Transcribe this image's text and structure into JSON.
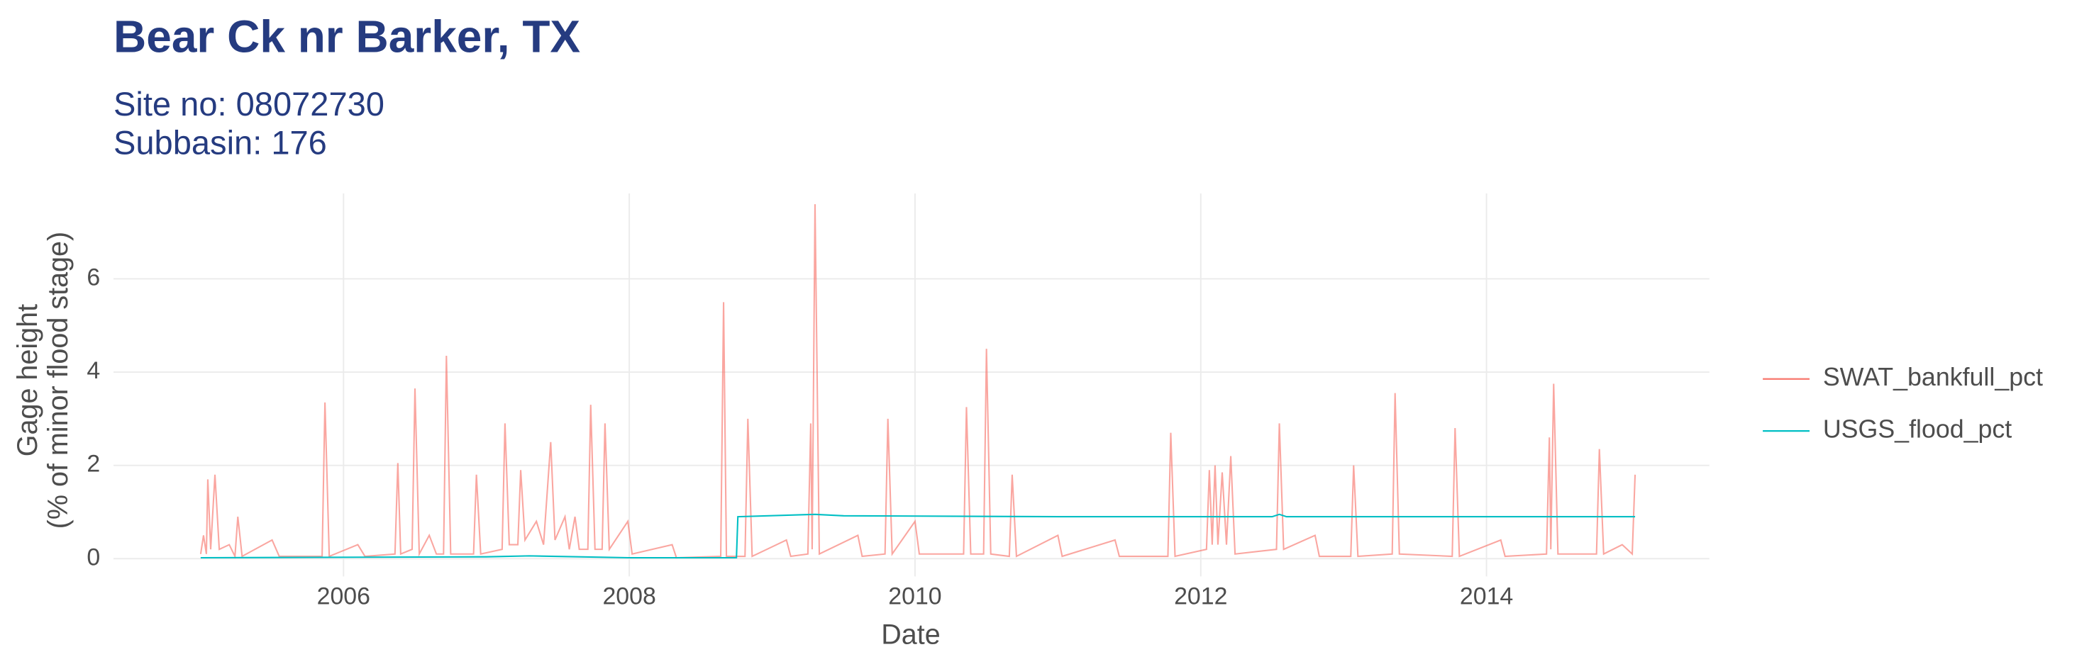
{
  "chart_data": {
    "type": "line",
    "title": "Bear Ck nr Barker, TX",
    "subtitle": [
      "Site no: 08072730",
      "Subbasin: 176"
    ],
    "x_label": "Date",
    "y_label": [
      "Gage height",
      "(% of minor flood stage)"
    ],
    "xlim": [
      2004.39,
      2015.56
    ],
    "xticks": [
      2006,
      2008,
      2010,
      2012,
      2014
    ],
    "ylim": [
      -0.38,
      7.83
    ],
    "yticks": [
      0,
      2,
      4,
      6
    ],
    "grid": true,
    "legend": "right",
    "series": [
      {
        "name": "SWAT_bankfull_pct",
        "color": "#f8766d",
        "x": [
          2005.0,
          2005.02,
          2005.04,
          2005.05,
          2005.07,
          2005.1,
          2005.13,
          2005.2,
          2005.24,
          2005.26,
          2005.29,
          2005.5,
          2005.55,
          2005.85,
          2005.87,
          2005.9,
          2006.1,
          2006.15,
          2006.36,
          2006.38,
          2006.4,
          2006.48,
          2006.5,
          2006.53,
          2006.6,
          2006.65,
          2006.7,
          2006.72,
          2006.75,
          2006.91,
          2006.93,
          2006.96,
          2007.11,
          2007.13,
          2007.16,
          2007.22,
          2007.24,
          2007.27,
          2007.35,
          2007.4,
          2007.45,
          2007.48,
          2007.55,
          2007.58,
          2007.62,
          2007.65,
          2007.71,
          2007.73,
          2007.76,
          2007.81,
          2007.83,
          2007.86,
          2007.99,
          2008.02,
          2008.3,
          2008.33,
          2008.64,
          2008.66,
          2008.68,
          2008.81,
          2008.83,
          2008.86,
          2009.1,
          2009.13,
          2009.25,
          2009.27,
          2009.28,
          2009.3,
          2009.33,
          2009.6,
          2009.63,
          2009.79,
          2009.81,
          2009.84,
          2010.0,
          2010.03,
          2010.34,
          2010.36,
          2010.39,
          2010.48,
          2010.5,
          2010.53,
          2010.66,
          2010.68,
          2010.71,
          2011.0,
          2011.03,
          2011.4,
          2011.43,
          2011.77,
          2011.79,
          2011.82,
          2012.04,
          2012.06,
          2012.08,
          2012.1,
          2012.12,
          2012.15,
          2012.18,
          2012.21,
          2012.24,
          2012.53,
          2012.55,
          2012.58,
          2012.8,
          2012.83,
          2013.05,
          2013.07,
          2013.1,
          2013.34,
          2013.36,
          2013.39,
          2013.76,
          2013.78,
          2013.81,
          2014.1,
          2014.13,
          2014.42,
          2014.44,
          2014.45,
          2014.47,
          2014.5,
          2014.77,
          2014.79,
          2014.82,
          2014.95,
          2015.02,
          2015.04
        ],
        "values": [
          0.1,
          0.5,
          0.1,
          1.7,
          0.2,
          1.8,
          0.2,
          0.3,
          0.05,
          0.9,
          0.05,
          0.4,
          0.05,
          0.05,
          3.35,
          0.05,
          0.3,
          0.05,
          0.1,
          2.05,
          0.1,
          0.2,
          3.65,
          0.1,
          0.5,
          0.1,
          0.1,
          4.35,
          0.1,
          0.1,
          1.8,
          0.1,
          0.2,
          2.9,
          0.3,
          0.3,
          1.9,
          0.4,
          0.8,
          0.3,
          2.5,
          0.4,
          0.9,
          0.2,
          0.9,
          0.2,
          0.2,
          3.3,
          0.2,
          0.2,
          2.9,
          0.2,
          0.8,
          0.1,
          0.3,
          0.02,
          0.05,
          5.5,
          0.05,
          0.05,
          3.0,
          0.05,
          0.4,
          0.05,
          0.1,
          2.9,
          0.2,
          7.6,
          0.1,
          0.5,
          0.05,
          0.1,
          3.0,
          0.1,
          0.8,
          0.1,
          0.1,
          3.25,
          0.1,
          0.1,
          4.5,
          0.1,
          0.05,
          1.8,
          0.05,
          0.5,
          0.05,
          0.4,
          0.05,
          0.05,
          2.7,
          0.05,
          0.2,
          1.9,
          0.3,
          2.0,
          0.3,
          1.85,
          0.3,
          2.2,
          0.1,
          0.2,
          2.9,
          0.2,
          0.5,
          0.05,
          0.05,
          2.0,
          0.05,
          0.1,
          3.55,
          0.1,
          0.05,
          2.8,
          0.05,
          0.4,
          0.05,
          0.1,
          2.6,
          0.2,
          3.75,
          0.1,
          0.1,
          2.35,
          0.1,
          0.3,
          0.1,
          1.8
        ]
      },
      {
        "name": "USGS_flood_pct",
        "color": "#00bfc4",
        "x": [
          2005.0,
          2007.0,
          2007.3,
          2008.0,
          2008.75,
          2008.76,
          2009.3,
          2009.5,
          2011.0,
          2012.5,
          2012.55,
          2012.6,
          2015.04
        ],
        "values": [
          0.02,
          0.04,
          0.06,
          0.02,
          0.02,
          0.9,
          0.95,
          0.92,
          0.9,
          0.9,
          0.95,
          0.9,
          0.9
        ]
      }
    ]
  }
}
